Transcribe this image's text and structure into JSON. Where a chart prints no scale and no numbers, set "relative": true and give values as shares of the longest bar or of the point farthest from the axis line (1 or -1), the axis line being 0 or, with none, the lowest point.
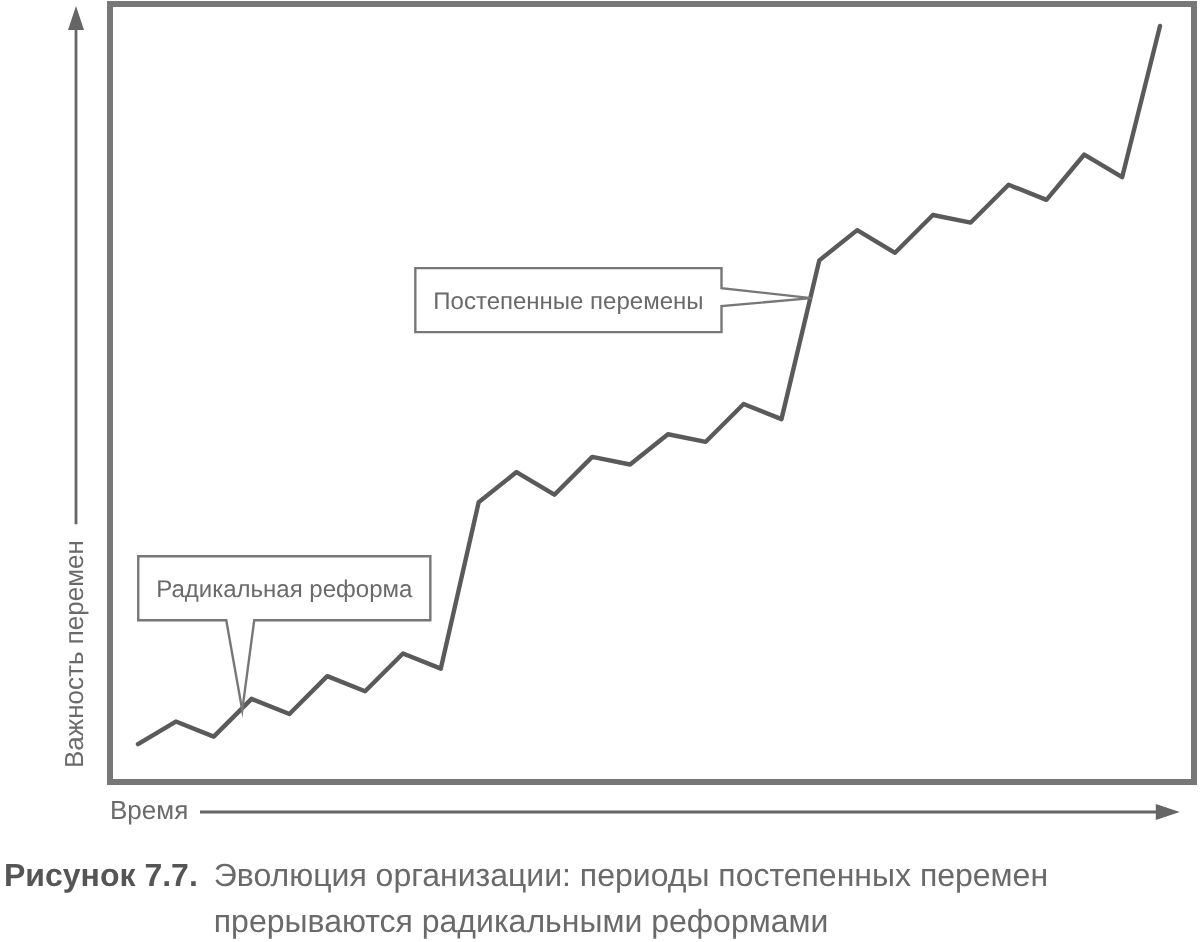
{
  "chart_data": {
    "type": "line",
    "title": "Рисунок 7.7.",
    "subtitle": "Эволюция организации: периоды постепенных перемен прерываются радикальными реформами",
    "xlabel": "Время",
    "ylabel": "Важность перемен",
    "relative": true,
    "tick_labels": false,
    "categories": [
      null,
      null,
      null,
      null,
      null,
      null,
      null,
      null,
      null,
      null,
      null,
      null,
      null,
      null,
      null,
      null,
      null,
      null,
      null,
      null,
      null,
      null,
      null,
      null,
      null,
      null,
      null,
      null
    ],
    "series": [
      {
        "color": "#5a5a5a",
        "values": [
          0.05,
          0.08,
          0.06,
          0.11,
          0.09,
          0.14,
          0.12,
          0.17,
          0.15,
          0.37,
          0.41,
          0.38,
          0.43,
          0.42,
          0.46,
          0.45,
          0.5,
          0.48,
          0.69,
          0.73,
          0.7,
          0.75,
          0.74,
          0.79,
          0.77,
          0.83,
          0.8,
          1
        ]
      }
    ],
    "annotations": [
      "Радикальная реформа",
      "Постепенные перемены"
    ]
  }
}
